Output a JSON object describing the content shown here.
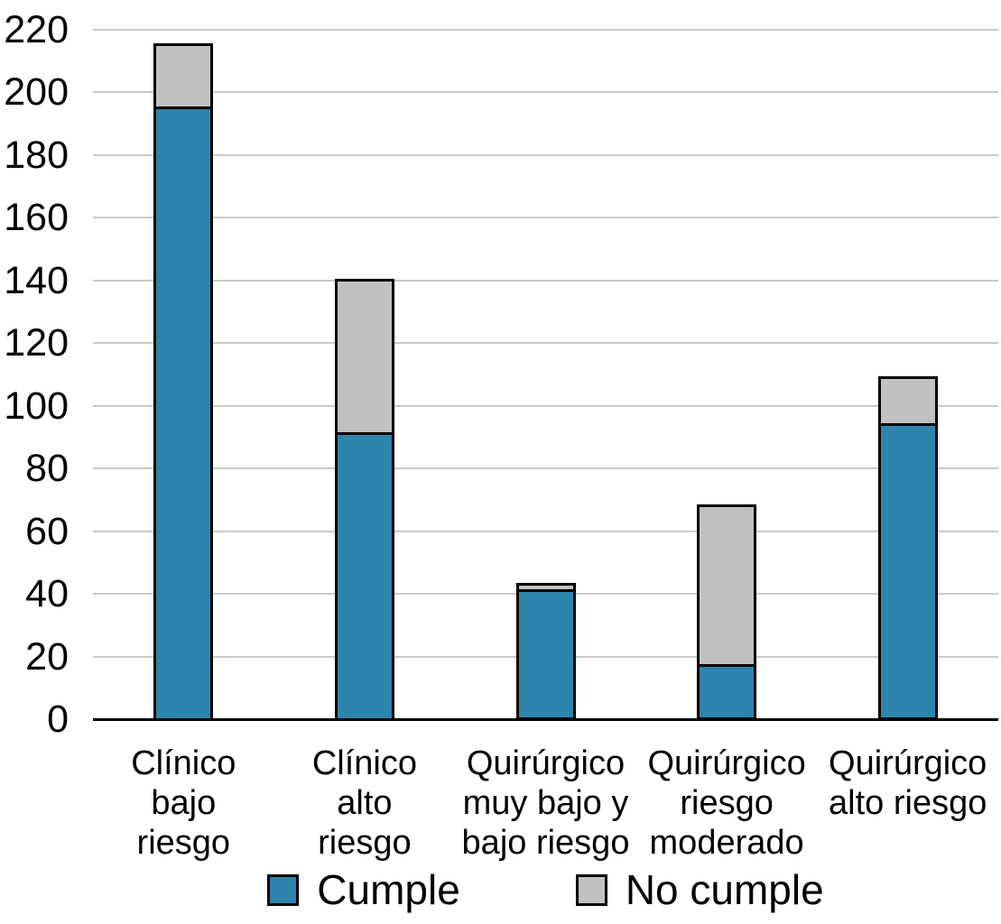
{
  "chart_data": {
    "type": "bar",
    "stacked": true,
    "title": "",
    "xlabel": "",
    "ylabel": "",
    "categories": [
      "Clínico bajo riesgo",
      "Clínico alto riesgo",
      "Quirúrgico muy bajo y bajo riesgo",
      "Quirúrgico riesgo moderado",
      "Quirúrgico alto riesgo"
    ],
    "category_label_lines": [
      [
        "Clínico",
        "bajo",
        "riesgo"
      ],
      [
        "Clínico",
        "alto",
        "riesgo"
      ],
      [
        "Quirúrgico",
        "muy bajo y",
        "bajo riesgo"
      ],
      [
        "Quirúrgico",
        "riesgo",
        "moderado"
      ],
      [
        "Quirúrgico",
        "alto riesgo"
      ]
    ],
    "series": [
      {
        "name": "Cumple",
        "color": "#2c85ad",
        "values": [
          195,
          91,
          41,
          17,
          94
        ]
      },
      {
        "name": "No cumple",
        "color": "#c0c1c3",
        "values": [
          20,
          49,
          2,
          51,
          15
        ]
      }
    ],
    "totals": [
      215,
      140,
      43,
      68,
      109
    ],
    "ylim": [
      0,
      220
    ],
    "ytick_step": 20,
    "yticks": [
      0,
      20,
      40,
      60,
      80,
      100,
      120,
      140,
      160,
      180,
      200,
      220
    ],
    "grid": true,
    "gridline_color": "#c9c9c9",
    "axis_color": "#000000",
    "bar_outline_color": "#000000",
    "legend_position": "bottom",
    "legend_labels": [
      "Cumple",
      "No cumple"
    ]
  }
}
